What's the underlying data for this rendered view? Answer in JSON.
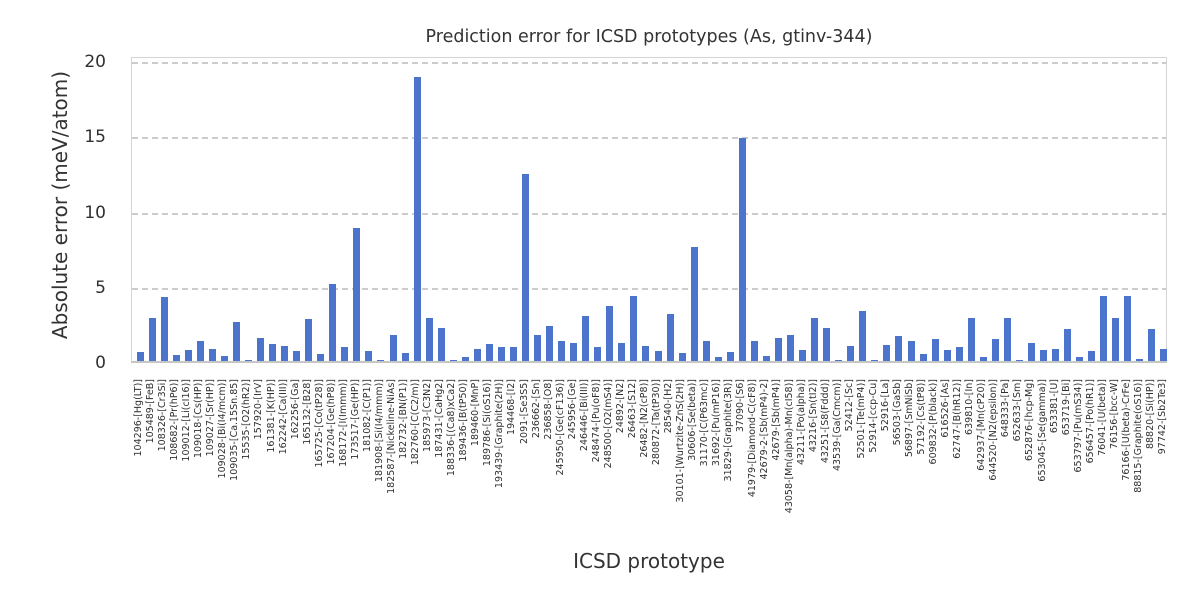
{
  "chart_data": {
    "type": "bar",
    "title": "Prediction error for ICSD prototypes (As, gtinv-344)",
    "xlabel": "ICSD prototype",
    "ylabel": "Absolute error (meV/atom)",
    "ylim": [
      0,
      20
    ],
    "yticks": [
      0,
      5,
      10,
      15,
      20
    ],
    "grid": "horizontal-dashed",
    "legend": "none",
    "bar_color": "#4c74cd",
    "grid_color": "#cccccc",
    "text_color": "#303030",
    "categories": [
      "104296-[Hg(LT)]",
      "105489-[FeB]",
      "108326-[Cr3Si]",
      "108682-[Pr(hP6)]",
      "109012-[Li(cI16)]",
      "109018-[Cs(HP)]",
      "109027-[Sr(HP)]",
      "109028-[Bi(I4/mcm)]",
      "109035-[Ca.15Sn.85]",
      "15535-[O2(hR2)]",
      "157920-[IrV]",
      "161381-[K(HP)]",
      "162242-[Ca(III)]",
      "162256-[Ga]",
      "165132-[B28]",
      "165725-[Co(tP28)]",
      "167204-[Ge(hP8)]",
      "168172-[I(Immm)]",
      "173517-[Ge(HP)]",
      "181082-[C(P1)]",
      "181908-[Si(I4/mmm)]",
      "182587-[Nickeline-NiAs]",
      "182732-[BN(P1)]",
      "182760-[C(C2/m)]",
      "185973-[C3N2]",
      "187431-[CaHg2]",
      "188336-[(Ca8)xCa2]",
      "189436-[B(tP50)]",
      "189460-[MnP]",
      "189786-[Si(oS16)]",
      "193439-[Graphite(2H)]",
      "194468-[I2]",
      "2091-[Se3S5]",
      "236662-[Sn]",
      "236858-[O8]",
      "245950-[Ge(cF136)]",
      "245956-[Ge]",
      "246446-[Bi(III)]",
      "248474-[Pu(oF8)]",
      "248500-[O2(mS4)]",
      "24892-[N2]",
      "26463-[S12]",
      "26482-[N2(cP8)]",
      "280872-[Ta(tP30)]",
      "28540-[H2]",
      "30101-[Wurtzite-ZnS(2H)]",
      "30606-[Se(beta)]",
      "31170-[C(P63mc)]",
      "31692-[Pu(mP16)]",
      "31829-[Graphite(3R)]",
      "37090-[S6]",
      "41979-[Diamond-C(cF8)]",
      "42679-2-[Sb(mP4)-2]",
      "42679-[Sb(mP4)]",
      "43058-[Mn(alpha)-Mn(cI58)]",
      "43211-[Po(alpha)]",
      "43216-[Sn(tI2)]",
      "43251-[S8(Fddd)]",
      "43539-[Ga(Cmcm)]",
      "52412-[Sc]",
      "52501-[Te(mP4)]",
      "52914-[ccp-Cu]",
      "52916-[La]",
      "56503-[GaSb]",
      "56897-[SmNiSb]",
      "57192-[Cs(tP8)]",
      "609832-[P(black)]",
      "616526-[As]",
      "62747-[B(hR12)]",
      "639810-[In]",
      "642937-[Mn(cP20)]",
      "644520-[N2(epsilon)]",
      "648333-[Pa]",
      "652633-[Sm]",
      "652876-[hcp-Mg]",
      "653045-[Se(gamma)]",
      "653381-[U]",
      "653719-[Bi]",
      "653797-[Pu(mS34)]",
      "656457-[Po(hR1)]",
      "76041-[U(beta)]",
      "76156-[bcc-W]",
      "76166-[U(beta)-CrFe]",
      "88815-[Graphite(oS16)]",
      "88820-[Si(HP)]",
      "97742-[Sb2Te3]"
    ],
    "values": [
      0.6,
      2.85,
      4.25,
      0.4,
      0.7,
      1.35,
      0.8,
      0.35,
      2.6,
      0.1,
      1.5,
      1.15,
      1.0,
      0.65,
      2.8,
      0.45,
      5.1,
      0.9,
      8.85,
      0.65,
      0.05,
      1.75,
      0.55,
      18.85,
      2.85,
      2.2,
      0.05,
      0.3,
      0.8,
      1.15,
      0.95,
      0.95,
      12.45,
      1.75,
      2.3,
      1.35,
      1.2,
      3.0,
      0.95,
      3.65,
      1.2,
      4.35,
      1.0,
      0.65,
      3.1,
      0.5,
      7.6,
      1.3,
      0.3,
      0.6,
      14.8,
      1.35,
      0.35,
      1.5,
      1.7,
      0.7,
      2.85,
      2.2,
      0.05,
      1.0,
      3.3,
      0.05,
      1.05,
      1.65,
      1.3,
      0.45,
      1.45,
      0.7,
      0.9,
      2.85,
      0.3,
      1.45,
      2.85,
      0.05,
      1.2,
      0.7,
      0.8,
      2.1,
      0.3,
      0.65,
      4.3,
      2.85,
      4.35,
      0.15,
      2.15,
      0.8
    ]
  }
}
